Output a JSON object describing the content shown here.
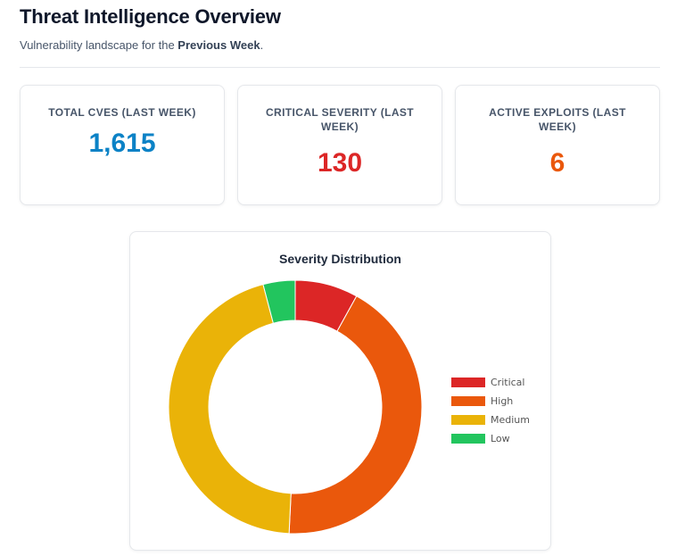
{
  "header": {
    "title": "Threat Intelligence Overview",
    "subtitle_prefix": "Vulnerability landscape for the ",
    "subtitle_period": "Previous Week",
    "subtitle_suffix": "."
  },
  "stats": [
    {
      "label": "TOTAL CVES (LAST WEEK)",
      "value": "1,615",
      "color": "#0b82c6"
    },
    {
      "label": "CRITICAL SEVERITY (LAST WEEK)",
      "value": "130",
      "color": "#dc2626"
    },
    {
      "label": "ACTIVE EXPLOITS (LAST WEEK)",
      "value": "6",
      "color": "#ea580c"
    }
  ],
  "chart_data": {
    "type": "pie",
    "variant": "doughnut",
    "title": "Severity Distribution",
    "categories": [
      "Critical",
      "High",
      "Medium",
      "Low"
    ],
    "values": [
      130,
      690,
      729,
      66
    ],
    "colors": [
      "#dc2626",
      "#ea580c",
      "#eab308",
      "#22c55e"
    ],
    "legend_position": "right"
  }
}
